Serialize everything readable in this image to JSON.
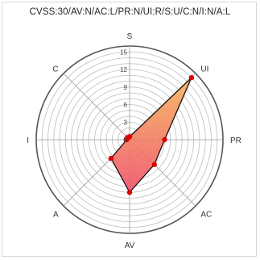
{
  "chart_data": {
    "type": "radar",
    "title": "CVSS:30/AV:N/AC:L/PR:N/UI:R/S:U/C:N/I:N/A:L",
    "axes": [
      "S",
      "UI",
      "PR",
      "AC",
      "AV",
      "A",
      "I",
      "C"
    ],
    "values": [
      0.5,
      15,
      6,
      6,
      9,
      4.5,
      0.5,
      0.5
    ],
    "r_ticks": [
      0,
      3,
      6,
      9,
      12,
      15
    ],
    "r_max": 16,
    "grid": true,
    "colors": {
      "fill_top": "#f7b45a",
      "fill_bottom": "#f0506a",
      "outline": "#111111",
      "point": "#dd0000",
      "grid": "#bdbdbd",
      "outer_ring": "#555555"
    }
  }
}
